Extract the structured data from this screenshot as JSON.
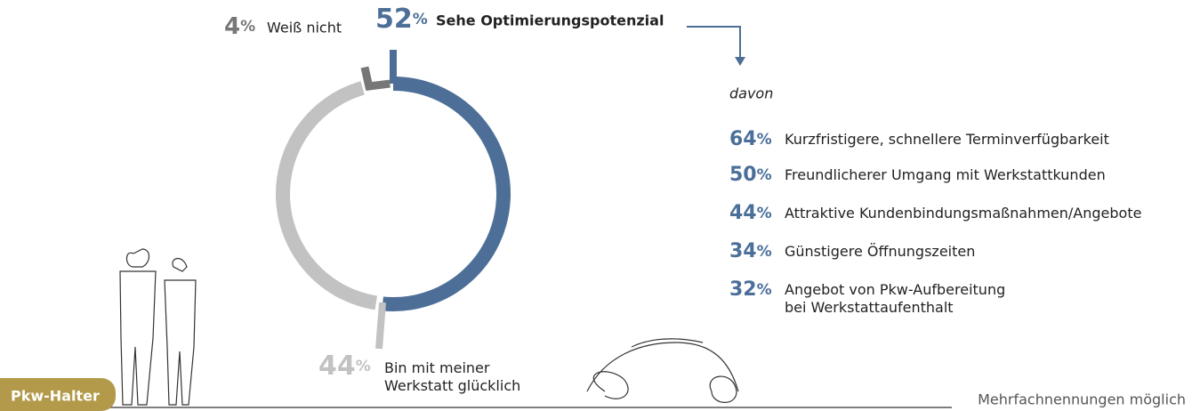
{
  "chart_data": {
    "type": "donut",
    "categories": [
      "Sehe Optimierungspotenzial",
      "Bin mit meiner\nWerkstatt glücklich",
      "Weiß nicht"
    ],
    "values": [
      52,
      44,
      4
    ],
    "colors": [
      "#4d6f97",
      "#c2c2c2",
      "#777777"
    ],
    "unit": "%",
    "breakdown_title": "davon",
    "breakdown": [
      {
        "value": 64,
        "label": "Kurzfristigere, schnellere Terminverfügbarkeit"
      },
      {
        "value": 50,
        "label": "Freundlicherer Umgang mit Werkstattkunden"
      },
      {
        "value": 44,
        "label": "Attraktive Kundenbindungsmaßnahmen/Angebote"
      },
      {
        "value": 34,
        "label": "Günstigere Öffnungszeiten"
      },
      {
        "value": 32,
        "label": "Angebot von Pkw-Aufbereitung\nbei Werkstattaufenthalt"
      }
    ],
    "tag": "Pkw-Halter",
    "note": "Mehrfachnennungen möglich"
  }
}
